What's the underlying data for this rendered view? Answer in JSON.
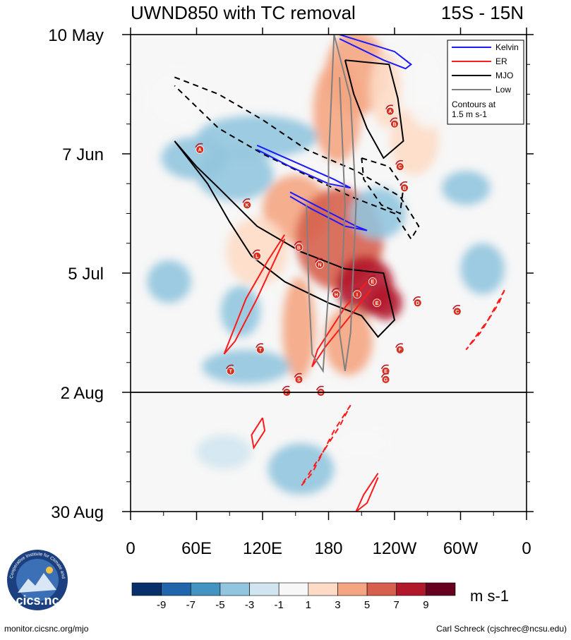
{
  "chart_data": {
    "type": "heatmap",
    "title_left": "UWND850 with TC removal",
    "title_right": "15S - 15N",
    "x_ticks": [
      "0",
      "60E",
      "120E",
      "180",
      "120W",
      "60W",
      "0"
    ],
    "x_tick_lon": [
      0,
      60,
      120,
      180,
      240,
      300,
      360
    ],
    "y_ticks": [
      "10 May",
      "7 Jun",
      "5 Jul",
      "2 Aug",
      "30 Aug"
    ],
    "y_tick_day": [
      0,
      28,
      56,
      84,
      112
    ],
    "observed_end_day": 84,
    "legend": {
      "items": [
        {
          "label": "Kelvin",
          "color": "#1a1aff"
        },
        {
          "label": "ER",
          "color": "#ff1a1a"
        },
        {
          "label": "MJO",
          "color": "#000000"
        },
        {
          "label": "Low",
          "color": "#808080"
        }
      ],
      "note_line1": "Contours at",
      "note_line2": "1.5 m s-1"
    },
    "colorbar": {
      "unit": "m s-1",
      "labels": [
        "-9",
        "-7",
        "-5",
        "-3",
        "-1",
        "1",
        "3",
        "5",
        "7",
        "9"
      ],
      "colors": [
        "#08306b",
        "#2166ac",
        "#4393c3",
        "#92c5de",
        "#d1e5f0",
        "#f7f7f7",
        "#fddbc7",
        "#f4a582",
        "#d6604d",
        "#b2182b",
        "#67001f"
      ]
    },
    "anomaly_patches": [
      {
        "lon": 205,
        "day": 9,
        "rx": 28,
        "ry": 10,
        "v": 4
      },
      {
        "lon": 188,
        "day": 18,
        "rx": 22,
        "ry": 12,
        "v": 5
      },
      {
        "lon": 232,
        "day": 13,
        "rx": 14,
        "ry": 9,
        "v": 3
      },
      {
        "lon": 258,
        "day": 25,
        "rx": 22,
        "ry": 8,
        "v": 3
      },
      {
        "lon": 115,
        "day": 24,
        "rx": 55,
        "ry": 5,
        "v": -4
      },
      {
        "lon": 95,
        "day": 33,
        "rx": 35,
        "ry": 6,
        "v": -3
      },
      {
        "lon": 58,
        "day": 29,
        "rx": 30,
        "ry": 5,
        "v": -3
      },
      {
        "lon": 150,
        "day": 41,
        "rx": 30,
        "ry": 8,
        "v": 5
      },
      {
        "lon": 190,
        "day": 48,
        "rx": 40,
        "ry": 12,
        "v": 7
      },
      {
        "lon": 213,
        "day": 59,
        "rx": 26,
        "ry": 7,
        "v": 9
      },
      {
        "lon": 232,
        "day": 63,
        "rx": 15,
        "ry": 4,
        "v": 9
      },
      {
        "lon": 198,
        "day": 72,
        "rx": 22,
        "ry": 8,
        "v": 5
      },
      {
        "lon": 153,
        "day": 69,
        "rx": 15,
        "ry": 12,
        "v": 5
      },
      {
        "lon": 115,
        "day": 51,
        "rx": 28,
        "ry": 8,
        "v": 3
      },
      {
        "lon": 35,
        "day": 58,
        "rx": 20,
        "ry": 5,
        "v": -3
      },
      {
        "lon": 100,
        "day": 65,
        "rx": 18,
        "ry": 6,
        "v": -3
      },
      {
        "lon": 225,
        "day": 42,
        "rx": 25,
        "ry": 6,
        "v": -3
      },
      {
        "lon": 305,
        "day": 36,
        "rx": 22,
        "ry": 4,
        "v": -3
      },
      {
        "lon": 320,
        "day": 55,
        "rx": 20,
        "ry": 6,
        "v": -3
      },
      {
        "lon": 105,
        "day": 78,
        "rx": 40,
        "ry": 4,
        "v": -3
      },
      {
        "lon": 155,
        "day": 102,
        "rx": 30,
        "ry": 6,
        "v": -3
      },
      {
        "lon": 85,
        "day": 98,
        "rx": 25,
        "ry": 4,
        "v": -1
      },
      {
        "lon": 210,
        "day": 96,
        "rx": 30,
        "ry": 5,
        "v": 1
      },
      {
        "lon": 270,
        "day": 12,
        "rx": 20,
        "ry": 10,
        "v": 1
      },
      {
        "lon": 40,
        "day": 15,
        "rx": 30,
        "ry": 8,
        "v": 1
      }
    ],
    "contours": [
      {
        "kind": "MJO",
        "pts": [
          [
            195,
            6
          ],
          [
            235,
            7
          ],
          [
            243,
            15
          ],
          [
            248,
            25
          ],
          [
            230,
            29
          ],
          [
            215,
            22
          ],
          [
            203,
            14
          ],
          [
            195,
            6
          ]
        ]
      },
      {
        "kind": "MJO",
        "pts": [
          [
            40,
            25
          ],
          [
            60,
            31
          ],
          [
            80,
            36
          ],
          [
            115,
            45
          ],
          [
            155,
            51
          ],
          [
            195,
            55
          ],
          [
            230,
            56
          ],
          [
            240,
            67
          ],
          [
            225,
            71
          ],
          [
            210,
            66
          ],
          [
            180,
            63
          ],
          [
            140,
            58
          ],
          [
            110,
            52
          ],
          [
            90,
            44
          ],
          [
            70,
            35
          ],
          [
            40,
            25
          ]
        ]
      },
      {
        "kind": "MJO-neg",
        "pts": [
          [
            40,
            10
          ],
          [
            80,
            14
          ],
          [
            120,
            20
          ],
          [
            160,
            27
          ],
          [
            205,
            32
          ],
          [
            245,
            38
          ],
          [
            262,
            45
          ],
          [
            255,
            48
          ],
          [
            240,
            42
          ],
          [
            200,
            38
          ],
          [
            160,
            33
          ],
          [
            120,
            28
          ],
          [
            80,
            22
          ],
          [
            40,
            12
          ]
        ]
      },
      {
        "kind": "MJO-neg",
        "pts": [
          [
            210,
            29
          ],
          [
            235,
            31
          ],
          [
            248,
            36
          ],
          [
            245,
            42
          ],
          [
            228,
            40
          ],
          [
            212,
            34
          ],
          [
            210,
            29
          ]
        ]
      },
      {
        "kind": "Kelvin",
        "pts": [
          [
            190,
            0
          ],
          [
            240,
            4
          ],
          [
            255,
            7
          ],
          [
            250,
            8
          ],
          [
            230,
            6
          ],
          [
            190,
            1
          ]
        ]
      },
      {
        "kind": "Kelvin",
        "pts": [
          [
            115,
            26
          ],
          [
            150,
            30
          ],
          [
            185,
            34
          ],
          [
            200,
            36
          ],
          [
            180,
            35
          ],
          [
            145,
            31
          ],
          [
            115,
            27
          ]
        ]
      },
      {
        "kind": "Kelvin",
        "pts": [
          [
            145,
            37
          ],
          [
            175,
            41
          ],
          [
            205,
            45
          ],
          [
            215,
            46
          ],
          [
            195,
            45
          ],
          [
            165,
            41
          ],
          [
            145,
            38
          ]
        ]
      },
      {
        "kind": "ER",
        "pts": [
          [
            140,
            47
          ],
          [
            125,
            53
          ],
          [
            105,
            62
          ],
          [
            85,
            75
          ],
          [
            95,
            72
          ],
          [
            115,
            62
          ],
          [
            140,
            48
          ]
        ]
      },
      {
        "kind": "ER",
        "pts": [
          [
            215,
            58
          ],
          [
            195,
            64
          ],
          [
            170,
            74
          ],
          [
            165,
            78
          ],
          [
            178,
            73
          ],
          [
            200,
            66
          ],
          [
            218,
            60
          ]
        ]
      },
      {
        "kind": "ER-neg",
        "pts": [
          [
            340,
            60
          ],
          [
            325,
            67
          ],
          [
            305,
            74
          ],
          [
            318,
            70
          ],
          [
            335,
            63
          ],
          [
            340,
            60
          ]
        ]
      },
      {
        "kind": "ER-neg",
        "pts": [
          [
            200,
            87
          ],
          [
            185,
            93
          ],
          [
            165,
            103
          ],
          [
            155,
            106
          ],
          [
            170,
            100
          ],
          [
            190,
            92
          ],
          [
            200,
            87
          ]
        ]
      },
      {
        "kind": "ER",
        "pts": [
          [
            120,
            90
          ],
          [
            110,
            94
          ],
          [
            112,
            97
          ],
          [
            122,
            93
          ],
          [
            120,
            90
          ]
        ]
      },
      {
        "kind": "ER",
        "pts": [
          [
            225,
            103
          ],
          [
            212,
            108
          ],
          [
            205,
            112
          ],
          [
            215,
            110
          ],
          [
            225,
            104
          ]
        ]
      },
      {
        "kind": "Low",
        "pts": [
          [
            160,
            40
          ],
          [
            162,
            60
          ],
          [
            165,
            75
          ],
          [
            175,
            79
          ],
          [
            180,
            60
          ],
          [
            180,
            30
          ],
          [
            185,
            0
          ]
        ]
      },
      {
        "kind": "Low",
        "pts": [
          [
            185,
            0
          ],
          [
            200,
            15
          ],
          [
            205,
            40
          ],
          [
            200,
            70
          ],
          [
            195,
            79
          ],
          [
            190,
            70
          ],
          [
            195,
            40
          ],
          [
            190,
            10
          ]
        ]
      }
    ],
    "tc_markers": [
      {
        "label": "A",
        "lon": 236,
        "day": 18
      },
      {
        "label": "B",
        "lon": 240,
        "day": 21
      },
      {
        "label": "A",
        "lon": 63,
        "day": 27
      },
      {
        "label": "C",
        "lon": 245,
        "day": 31
      },
      {
        "label": "B",
        "lon": 249,
        "day": 36
      },
      {
        "label": "K",
        "lon": 106,
        "day": 40
      },
      {
        "label": "L",
        "lon": 115,
        "day": 52
      },
      {
        "label": "B",
        "lon": 153,
        "day": 50
      },
      {
        "label": "N",
        "lon": 172,
        "day": 54
      },
      {
        "label": "E",
        "lon": 220,
        "day": 58
      },
      {
        "label": "H",
        "lon": 187,
        "day": 61
      },
      {
        "label": "I",
        "lon": 206,
        "day": 61
      },
      {
        "label": "E",
        "lon": 224,
        "day": 63
      },
      {
        "label": "D",
        "lon": 261,
        "day": 63
      },
      {
        "label": "C",
        "lon": 297,
        "day": 65
      },
      {
        "label": "T",
        "lon": 118,
        "day": 74
      },
      {
        "label": "F",
        "lon": 245,
        "day": 74
      },
      {
        "label": "T",
        "lon": 91,
        "day": 79
      },
      {
        "label": "E",
        "lon": 232,
        "day": 79
      },
      {
        "label": "G",
        "lon": 232,
        "day": 81
      },
      {
        "label": "S",
        "lon": 153,
        "day": 81
      },
      {
        "label": "F",
        "lon": 142,
        "day": 84
      },
      {
        "label": "O",
        "lon": 173,
        "day": 84
      }
    ]
  },
  "logo": {
    "label": "cics.nc",
    "ring_text": "Cooperative Institute for Climate and Satellites"
  },
  "footer": {
    "left": "monitor.cicsnc.org/mjo",
    "right": "Carl Schreck (cjschrec@ncsu.edu)"
  }
}
